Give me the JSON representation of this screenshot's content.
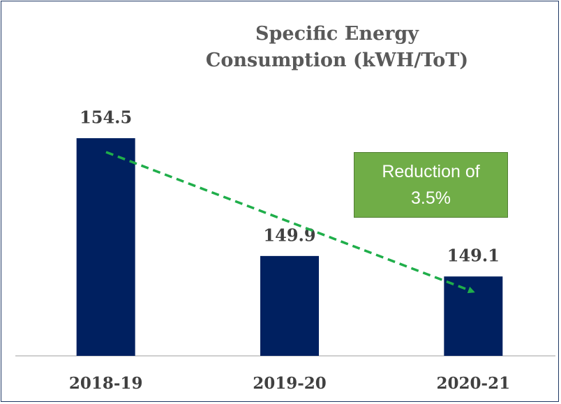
{
  "chart_data": {
    "type": "bar",
    "title": "Specific Energy Consumption (kWH/ToT)",
    "categories": [
      "2018-19",
      "2019-20",
      "2020-21"
    ],
    "values": [
      154.5,
      149.9,
      149.1
    ],
    "color": "#002060",
    "ylim": [
      146,
      156
    ],
    "annotation": "Reduction of 3.5%"
  }
}
